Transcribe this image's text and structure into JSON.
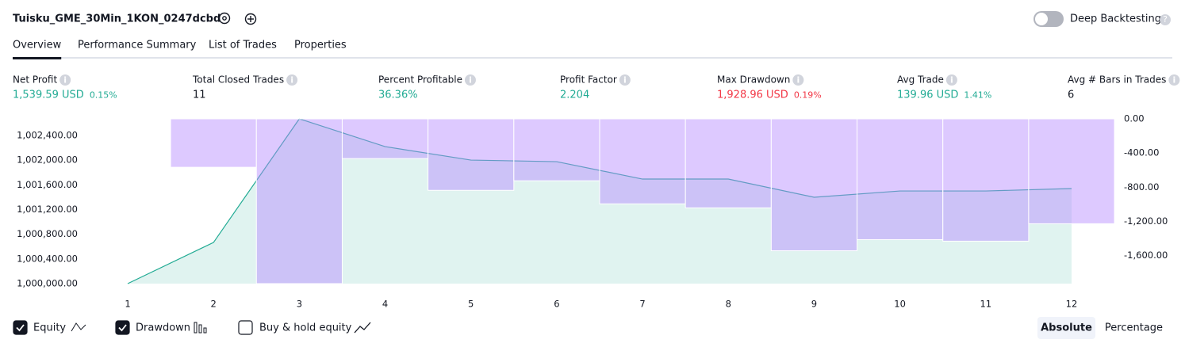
{
  "header": {
    "title": "Tuisku_GME_30Min_1KON_0247dcbd",
    "toggle_label": "Deep Backtesting"
  },
  "tabs": [
    "Overview",
    "Performance Summary",
    "List of Trades",
    "Properties"
  ],
  "metrics": [
    {
      "label": "Net Profit",
      "value": "1,539.59 USD",
      "percent": "0.15%",
      "color": "#22ab94"
    },
    {
      "label": "Total Closed Trades",
      "value": "11",
      "color": "#131722"
    },
    {
      "label": "Percent Profitable",
      "value": "36.36%",
      "color": "#22ab94"
    },
    {
      "label": "Profit Factor",
      "value": "2.204",
      "color": "#22ab94"
    },
    {
      "label": "Max Drawdown",
      "value": "1,928.96 USD",
      "percent": "0.19%",
      "color": "#f23645"
    },
    {
      "label": "Avg Trade",
      "value": "139.96 USD",
      "percent": "1.41%",
      "color": "#22ab94"
    },
    {
      "label": "Avg # Bars in Trades",
      "value": "6",
      "color": "#131722"
    }
  ],
  "chart_data": {
    "type": "combo",
    "categories": [
      "1",
      "2",
      "3",
      "4",
      "5",
      "6",
      "7",
      "8",
      "9",
      "10",
      "11",
      "12"
    ],
    "series": [
      {
        "name": "Equity",
        "type": "area",
        "color": "#22ab94",
        "values": [
          1000000,
          1000667,
          1002670,
          1002220,
          1002002,
          1001976,
          1001694,
          1001694,
          1001399,
          1001501,
          1001501,
          1001540
        ]
      },
      {
        "name": "Drawdown",
        "type": "bar",
        "axis": "y2",
        "color": "#b388ff",
        "values": [
          0,
          -567,
          -1929,
          -465,
          -837,
          -725,
          -995,
          -1042,
          -1544,
          -1414,
          -1432,
          -1228
        ]
      }
    ],
    "ylim": [
      1000000,
      1002670
    ],
    "yticks": [
      {
        "value": 1000000,
        "label": "1,000,000.00"
      },
      {
        "value": 1000400,
        "label": "1,000,400.00"
      },
      {
        "value": 1000800,
        "label": "1,000,800.00"
      },
      {
        "value": 1001200,
        "label": "1,001,200.00"
      },
      {
        "value": 1001600,
        "label": "1,001,600.00"
      },
      {
        "value": 1002000,
        "label": "1,002,000.00"
      },
      {
        "value": 1002400,
        "label": "1,002,400.00"
      }
    ],
    "y2lim": [
      -1929,
      0
    ],
    "y2ticks": [
      {
        "value": 0,
        "label": "0.00"
      },
      {
        "value": -400,
        "label": "-400.00"
      },
      {
        "value": -800,
        "label": "-800.00"
      },
      {
        "value": -1200,
        "label": "-1,200.00"
      },
      {
        "value": -1600,
        "label": "-1,600.00"
      }
    ]
  },
  "controls": {
    "buy_hold": "Buy & hold equity",
    "view_buttons": [
      "Absolute",
      "Percentage"
    ]
  }
}
